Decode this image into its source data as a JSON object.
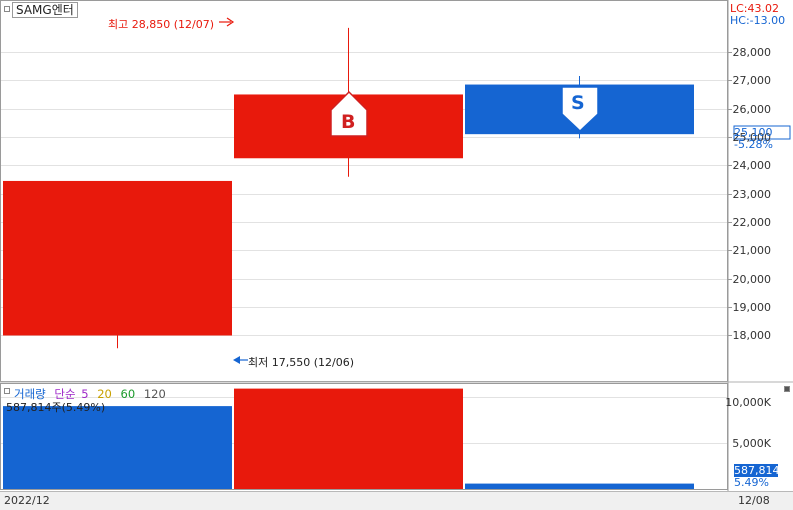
{
  "header": {
    "symbol": "SAMG엔터",
    "lc": "LC:43.02",
    "hc": "HC:-13.00"
  },
  "annotations": {
    "high_label": "최고 28,850 (12/07)",
    "low_label": "최저 17,550 (12/06)",
    "buy_marker": "B",
    "sell_marker": "S"
  },
  "price_axis": {
    "ticks": [
      "28,000",
      "27,000",
      "26,000",
      "25,000",
      "24,000",
      "23,000",
      "22,000",
      "21,000",
      "20,000",
      "19,000",
      "18,000"
    ],
    "current_price": "25,100",
    "current_change": "-5.28%"
  },
  "volume_panel": {
    "legend_title": "거래량",
    "legend_ma_label": "단순",
    "legend_periods": [
      "5",
      "20",
      "60",
      "120"
    ],
    "current_value": "587,814주(5.49%)",
    "ticks": [
      "10,000K",
      "5,000K"
    ],
    "current_tag": "587,814",
    "current_tag_pct": "5.49%"
  },
  "footer": {
    "period": "2022/12",
    "last_date": "12/08"
  },
  "colors": {
    "up": "#e8190c",
    "down": "#1565d2",
    "ma5": "#9e28c8",
    "ma20": "#c8a000",
    "ma60": "#1b9a2b",
    "ma120": "#555555"
  },
  "chart_data": {
    "type": "candlestick",
    "price_range": [
      17100,
      28950
    ],
    "candles": [
      {
        "date": "12/06",
        "open": 18000,
        "close": 23450,
        "high": 23450,
        "low": 17550,
        "direction": "up"
      },
      {
        "date": "12/07",
        "open": 24250,
        "close": 26500,
        "high": 28850,
        "low": 23600,
        "direction": "up",
        "marker": "B"
      },
      {
        "date": "12/08",
        "open": 26850,
        "close": 25100,
        "high": 27150,
        "low": 24950,
        "direction": "down",
        "marker": "S"
      }
    ],
    "volume_range": [
      0,
      11400000
    ],
    "volumes": [
      {
        "date": "12/06",
        "value": 9000000,
        "direction": "down"
      },
      {
        "date": "12/07",
        "value": 10900000,
        "direction": "up"
      },
      {
        "date": "12/08",
        "value": 587814,
        "direction": "down"
      }
    ]
  }
}
